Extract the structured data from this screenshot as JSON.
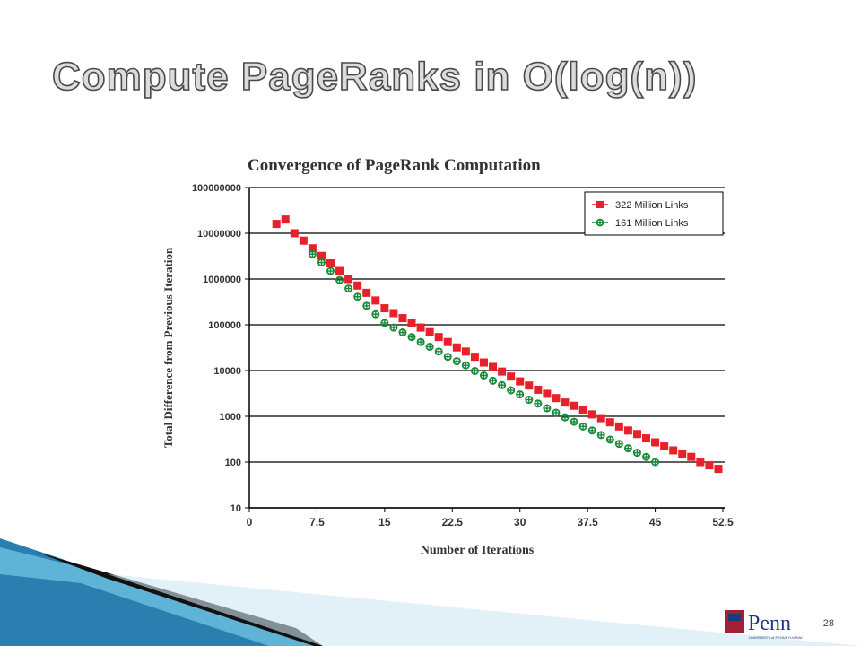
{
  "slide": {
    "title": "Compute PageRanks in O(log(n))",
    "page_number": "28",
    "logo": "Penn",
    "logo_subtitle": "UNIVERSITY of PENNSYLVANIA"
  },
  "chart_data": {
    "type": "scatter",
    "title": "Convergence of PageRank Computation",
    "x_label": "Number of Iterations",
    "y_label": "Total Difference from Previous Iteration",
    "log_scale_y": true,
    "grid": true,
    "legend": "upper right",
    "xlim": [
      0,
      52.5
    ],
    "xticks": [
      0,
      7.5,
      15,
      22.5,
      30,
      37.5,
      45,
      52.5
    ],
    "ylim": [
      10,
      100000000
    ],
    "yticks": [
      10,
      100,
      1000,
      10000,
      100000,
      1000000,
      10000000,
      100000000
    ],
    "series": [
      {
        "name": "322 Million Links",
        "color": "#e8202a",
        "marker": "square",
        "x": [
          3,
          4,
          5,
          6,
          7,
          8,
          9,
          10,
          11,
          12,
          13,
          14,
          15,
          16,
          17,
          18,
          19,
          20,
          21,
          22,
          23,
          24,
          25,
          26,
          27,
          28,
          29,
          30,
          31,
          32,
          33,
          34,
          35,
          36,
          37,
          38,
          39,
          40,
          41,
          42,
          43,
          44,
          45,
          46,
          47,
          48,
          49,
          50,
          51,
          52
        ],
        "values": [
          16000000,
          20000000,
          10000000,
          6900000,
          4700000,
          3200000,
          2200000,
          1500000,
          1000000,
          720000,
          500000,
          340000,
          230000,
          180000,
          140000,
          110000,
          87000,
          69000,
          54000,
          42000,
          32000,
          26000,
          20000,
          15000,
          12000,
          9500,
          7400,
          5800,
          4700,
          3800,
          3100,
          2500,
          2000,
          1700,
          1400,
          1100,
          910,
          740,
          600,
          490,
          410,
          330,
          270,
          220,
          180,
          150,
          130,
          100,
          85,
          71
        ]
      },
      {
        "name": "161 Million Links",
        "color": "#1a8a3a",
        "marker": "circle-plus",
        "x": [
          7,
          8,
          9,
          10,
          11,
          12,
          13,
          14,
          15,
          16,
          17,
          18,
          19,
          20,
          21,
          22,
          23,
          24,
          25,
          26,
          27,
          28,
          29,
          30,
          31,
          32,
          33,
          34,
          35,
          36,
          37,
          38,
          39,
          40,
          41,
          42,
          43,
          44,
          45
        ],
        "values": [
          3500000,
          2300000,
          1500000,
          950000,
          620000,
          410000,
          260000,
          170000,
          110000,
          87000,
          68000,
          54000,
          42000,
          33000,
          26000,
          20000,
          16000,
          13000,
          9800,
          7800,
          6000,
          4800,
          3700,
          3000,
          2300,
          1900,
          1500,
          1200,
          950,
          760,
          600,
          490,
          390,
          310,
          250,
          200,
          160,
          130,
          100
        ]
      }
    ]
  }
}
